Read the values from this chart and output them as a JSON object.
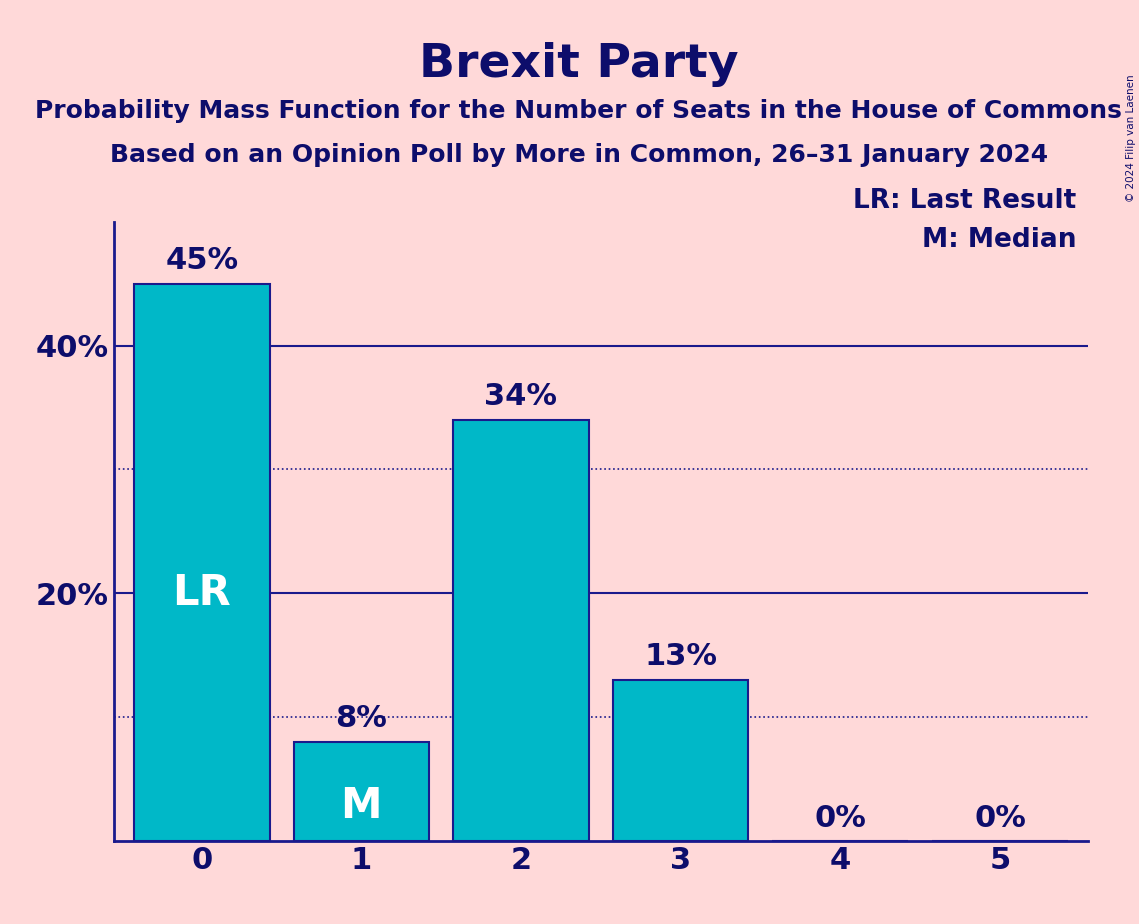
{
  "title": "Brexit Party",
  "subtitle1": "Probability Mass Function for the Number of Seats in the House of Commons",
  "subtitle2": "Based on an Opinion Poll by More in Common, 26–31 January 2024",
  "copyright": "© 2024 Filip van Laenen",
  "categories": [
    0,
    1,
    2,
    3,
    4,
    5
  ],
  "values": [
    0.45,
    0.08,
    0.34,
    0.13,
    0.0,
    0.0
  ],
  "bar_color": "#00B8C8",
  "bar_edge_color": "#1a1a8c",
  "background_color": "#FFD9D9",
  "text_color": "#0D0D6B",
  "title_fontsize": 34,
  "subtitle_fontsize": 18,
  "bar_label_fontsize": 22,
  "tick_fontsize": 22,
  "legend_fontsize": 19,
  "annotation_color_white": "#FFFFFF",
  "yticks": [
    0.0,
    0.2,
    0.4
  ],
  "ytick_labels": [
    "",
    "20%",
    "40%"
  ],
  "grid_solid": [
    0.2,
    0.4
  ],
  "grid_dotted": [
    0.1,
    0.3
  ],
  "lr_bar": 0,
  "m_bar": 1,
  "value_labels": [
    "45%",
    "8%",
    "34%",
    "13%",
    "0%",
    "0%"
  ],
  "ylim": [
    0,
    0.5
  ]
}
